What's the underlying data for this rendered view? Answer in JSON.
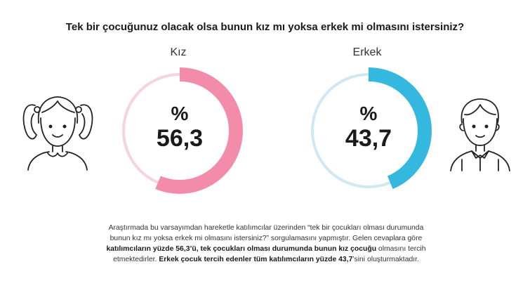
{
  "title": "Tek bir çocuğunuz olacak olsa bunun kız mı yoksa erkek mi olmasını istersiniz?",
  "percent_symbol": "%",
  "chart_data": {
    "type": "pie",
    "title": "Tek bir çocuğunuz olacak olsa bunun kız mı yoksa erkek mi olmasını istersiniz?",
    "categories": [
      "Kız",
      "Erkek"
    ],
    "values": [
      56.3,
      43.7
    ],
    "display_values": [
      "56,3",
      "43,7"
    ],
    "unit": "%",
    "colors": {
      "Kız": "#f28caa",
      "Erkek": "#35b8e0"
    },
    "track_colors": {
      "Kız": "#f6d3de",
      "Erkek": "#cfe8f3"
    }
  },
  "figures": [
    "girl-figure-icon",
    "boy-figure-icon"
  ],
  "paragraph": {
    "p1": "Araştırmada bu varsayımdan hareketle katılımcılar üzerinden “tek bir çocukları olması durumunda bunun kız mı yoksa erkek mi olmasını istersiniz?” sorgulamasını yapmıştır. Gelen cevaplara göre ",
    "b1": "katılımcıların yüzde 56,3’ü, tek çocukları olması durumunda bunun kız çocuğu",
    "p2": " olmasını tercih etmektedirler. ",
    "b2": "Erkek çocuk tercih edenler tüm katılımcıların yüzde 43,7",
    "p3": "’sini oluşturmaktadır."
  }
}
